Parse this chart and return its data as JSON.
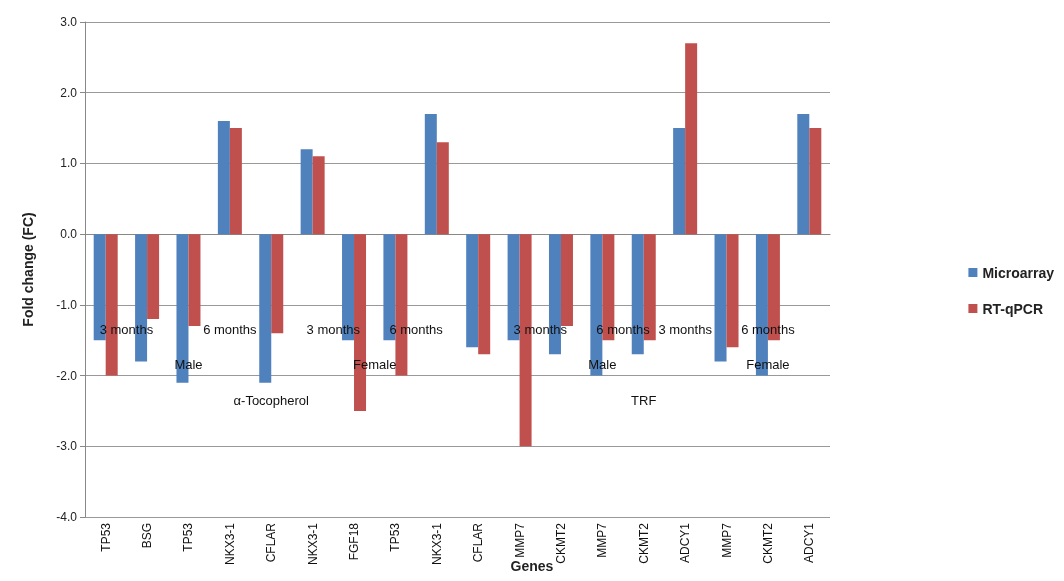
{
  "chart_data": {
    "type": "bar",
    "xlabel": "Genes",
    "ylabel": "Fold change (FC)",
    "categories": [
      "TP53",
      "BSG",
      "TP53",
      "NKX3-1",
      "CFLAR",
      "NKX3-1",
      "FGF18",
      "TP53",
      "NKX3-1",
      "CFLAR",
      "MMP7",
      "CKMT2",
      "MMP7",
      "CKMT2",
      "ADCY1",
      "MMP7",
      "CKMT2",
      "ADCY1"
    ],
    "series": [
      {
        "name": "Microarray",
        "color": "#4f81bd",
        "values": [
          -1.5,
          -1.8,
          -2.1,
          1.6,
          -2.1,
          1.2,
          -1.5,
          -1.5,
          1.7,
          -1.6,
          -1.5,
          -1.7,
          -2.0,
          -1.7,
          1.5,
          -1.8,
          -2.0,
          1.7
        ]
      },
      {
        "name": "RT-qPCR",
        "color": "#c0504d",
        "values": [
          -2.0,
          -1.2,
          -1.3,
          1.5,
          -1.4,
          1.1,
          -2.5,
          -2.0,
          1.3,
          -1.7,
          -3.0,
          -1.3,
          -1.5,
          -1.5,
          2.7,
          -1.6,
          -1.5,
          1.5
        ]
      }
    ],
    "annotations": [
      "3 months",
      "6 months",
      "3 months",
      "6 months",
      "3 months",
      "6 months",
      "3 months",
      "6 months",
      "Male",
      "Female",
      "Male",
      "Female",
      "α-Tocopherol",
      "TRF"
    ],
    "ylim": [
      -4.0,
      3.0
    ],
    "yticks": [
      {
        "value": -4,
        "label": "-4.0"
      },
      {
        "value": -3,
        "label": "-3.0"
      },
      {
        "value": -2,
        "label": "-2.0"
      },
      {
        "value": -1,
        "label": "-1.0"
      },
      {
        "value": 0,
        "label": "0.0"
      },
      {
        "value": 1,
        "label": "1.0"
      },
      {
        "value": 2,
        "label": "2.0"
      },
      {
        "value": 3,
        "label": "3.0"
      }
    ],
    "grid": "y",
    "legend": "right"
  }
}
